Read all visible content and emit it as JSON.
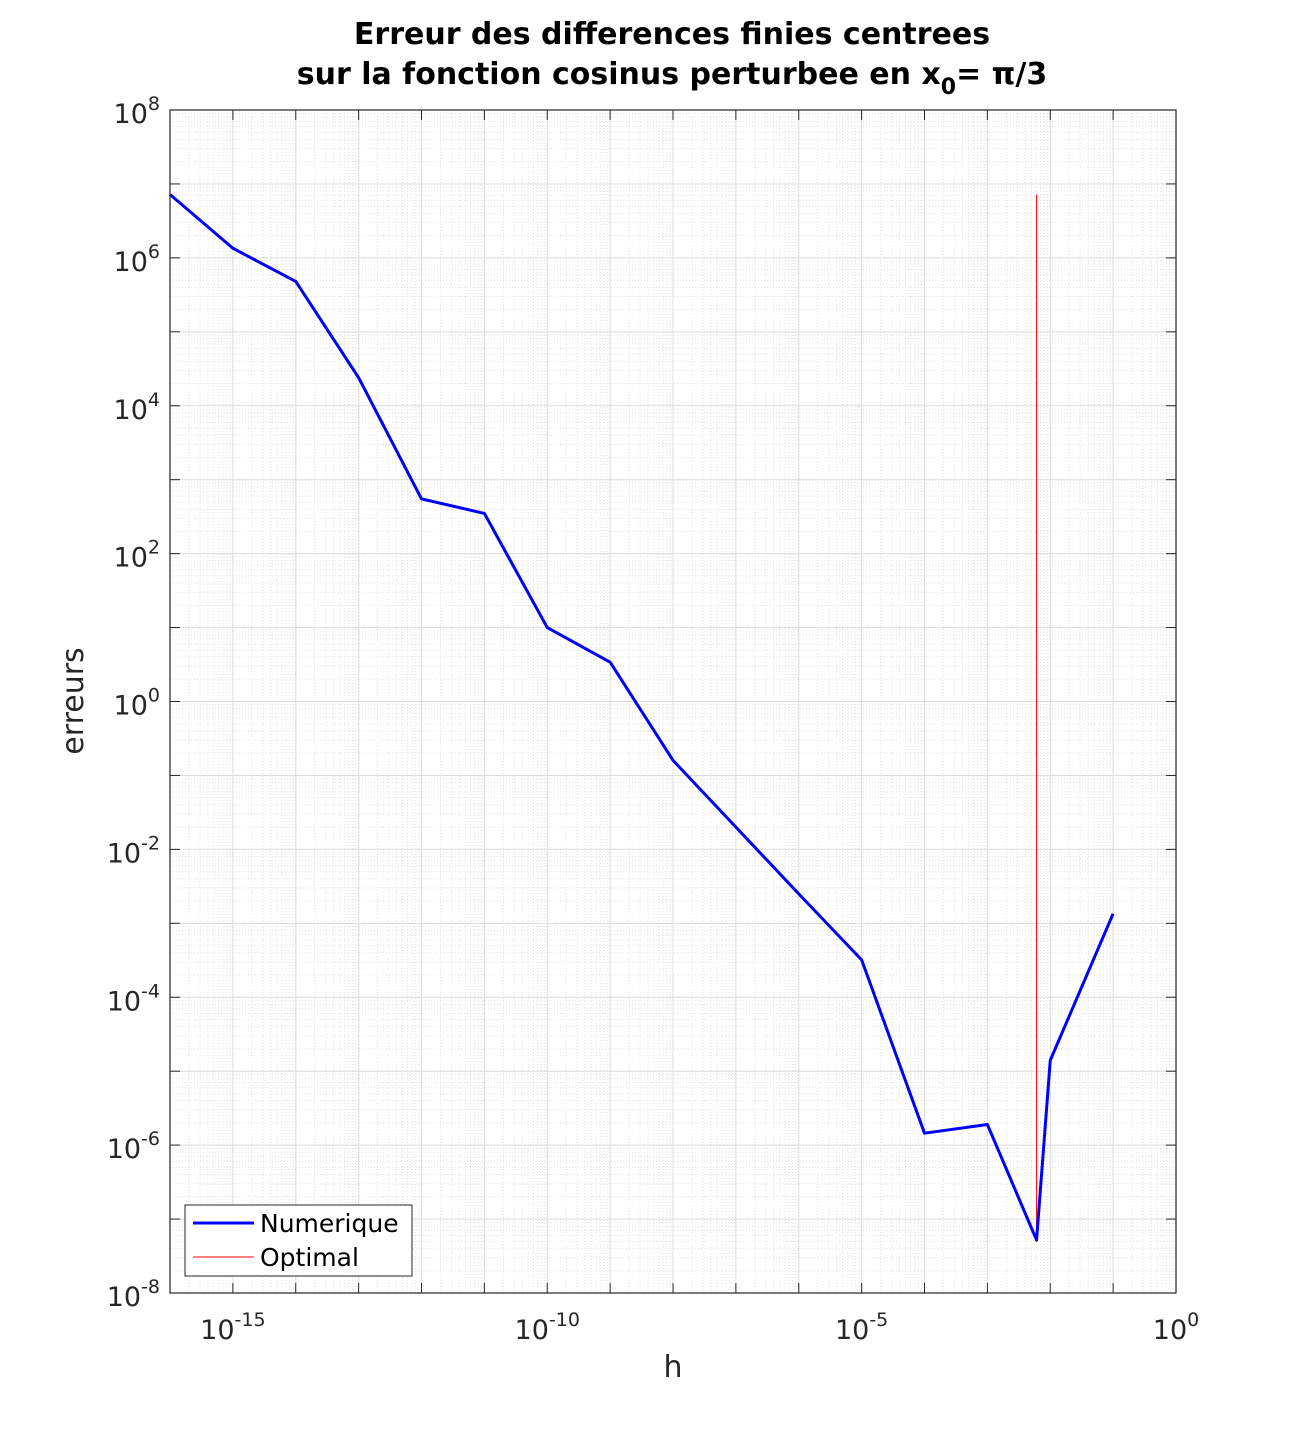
{
  "chart_data": {
    "type": "line",
    "title": [
      "Erreur des differences finies centrees",
      "sur la fonction cosinus perturbee en x"
    ],
    "title_subscript": "0",
    "title_suffix": "= π/3",
    "xlabel": "h",
    "ylabel": "erreurs",
    "xscale": "log",
    "yscale": "log",
    "xlim": [
      1e-16,
      1
    ],
    "ylim": [
      1e-08,
      100000000.0
    ],
    "x_ticks": [
      {
        "base": "10",
        "exp": "-15"
      },
      {
        "base": "10",
        "exp": "-10"
      },
      {
        "base": "10",
        "exp": "-5"
      },
      {
        "base": "10",
        "exp": "0"
      }
    ],
    "y_ticks": [
      {
        "base": "10",
        "exp": "8"
      },
      {
        "base": "10",
        "exp": "6"
      },
      {
        "base": "10",
        "exp": "4"
      },
      {
        "base": "10",
        "exp": "2"
      },
      {
        "base": "10",
        "exp": "0"
      },
      {
        "base": "10",
        "exp": "-2"
      },
      {
        "base": "10",
        "exp": "-4"
      },
      {
        "base": "10",
        "exp": "-6"
      },
      {
        "base": "10",
        "exp": "-8"
      }
    ],
    "grid": true,
    "legend_position": "bottom-left",
    "series": [
      {
        "name": "Numerique",
        "color": "#0000ff",
        "x": [
          1e-16,
          1e-15,
          1e-14,
          1e-13,
          1e-12,
          1e-11,
          1e-10,
          1e-09,
          1e-08,
          1e-07,
          1e-06,
          1e-05,
          0.0001,
          0.001,
          0.00606,
          0.01,
          0.1
        ],
        "y": [
          7200000.0,
          1350000.0,
          480000.0,
          24000.0,
          550.0,
          350.0,
          10,
          3.4,
          0.16,
          0.02,
          0.0025,
          0.00032,
          1.45e-06,
          1.9e-06,
          5.2e-08,
          1.4e-05,
          0.00135
        ]
      },
      {
        "name": "Optimal",
        "color": "#ff0000",
        "x": [
          0.00606,
          0.00606
        ],
        "y": [
          5.2e-08,
          7200000.0
        ]
      }
    ]
  }
}
